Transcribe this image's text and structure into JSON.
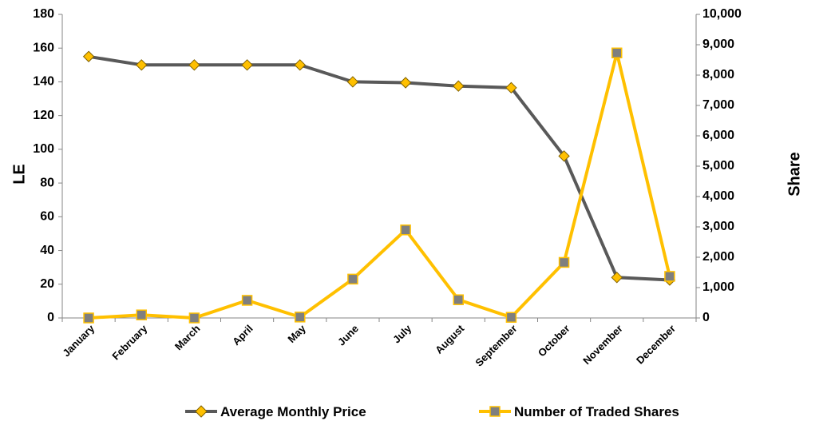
{
  "chart_data": {
    "type": "line",
    "categories": [
      "January",
      "February",
      "March",
      "April",
      "May",
      "June",
      "July",
      "August",
      "September",
      "October",
      "November",
      "December"
    ],
    "series": [
      {
        "name": "Average Monthly Price",
        "axis": "left",
        "color": "#595959",
        "marker": "diamond",
        "marker_color": "#FFC000",
        "values": [
          155,
          150,
          150,
          150,
          150,
          140,
          139.5,
          137.5,
          136.5,
          96,
          24,
          22.5
        ]
      },
      {
        "name": "Number of Traded Shares",
        "axis": "right",
        "color": "#FFC000",
        "marker": "square",
        "marker_color": "#7F7F7F",
        "values": [
          0,
          100,
          0,
          580,
          30,
          1280,
          2900,
          600,
          20,
          1830,
          8730,
          1370
        ]
      }
    ],
    "y_left": {
      "label": "LE",
      "ylim": [
        0,
        180
      ],
      "ticks": [
        "0",
        "20",
        "40",
        "60",
        "80",
        "100",
        "120",
        "140",
        "160",
        "180"
      ]
    },
    "y_right": {
      "label": "Share",
      "ylim": [
        0,
        10000
      ],
      "ticks": [
        "0",
        "1,000",
        "2,000",
        "3,000",
        "4,000",
        "5,000",
        "6,000",
        "7,000",
        "8,000",
        "9,000",
        "10,000"
      ]
    },
    "grid": false,
    "legend": "bottom"
  }
}
